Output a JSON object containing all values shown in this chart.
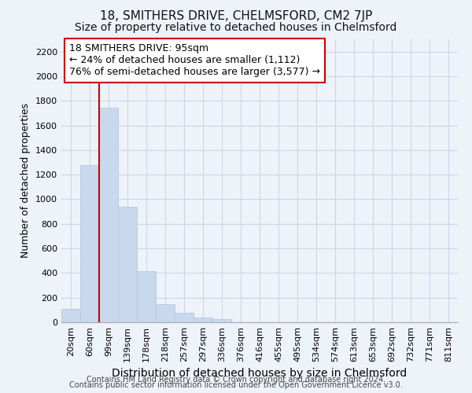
{
  "title": "18, SMITHERS DRIVE, CHELMSFORD, CM2 7JP",
  "subtitle": "Size of property relative to detached houses in Chelmsford",
  "xlabel": "Distribution of detached houses by size in Chelmsford",
  "ylabel": "Number of detached properties",
  "footer_line1": "Contains HM Land Registry data © Crown copyright and database right 2024.",
  "footer_line2": "Contains public sector information licensed under the Open Government Licence v3.0.",
  "bar_labels": [
    "20sqm",
    "60sqm",
    "99sqm",
    "139sqm",
    "178sqm",
    "218sqm",
    "257sqm",
    "297sqm",
    "336sqm",
    "376sqm",
    "416sqm",
    "455sqm",
    "495sqm",
    "534sqm",
    "574sqm",
    "613sqm",
    "653sqm",
    "692sqm",
    "732sqm",
    "771sqm",
    "811sqm"
  ],
  "bar_values": [
    110,
    1275,
    1745,
    940,
    415,
    150,
    75,
    38,
    25,
    0,
    0,
    0,
    0,
    0,
    0,
    0,
    0,
    0,
    0,
    0,
    0
  ],
  "bar_color": "#c8d8ed",
  "bar_edge_color": "#b0c4de",
  "background_color": "#eef2f9",
  "grid_color": "#ccd6e8",
  "vline_color": "#cc0000",
  "vline_x": 1.5,
  "annotation_line1": "18 SMITHERS DRIVE: 95sqm",
  "annotation_line2": "← 24% of detached houses are smaller (1,112)",
  "annotation_line3": "76% of semi-detached houses are larger (3,577) →",
  "annotation_box_color": "#ffffff",
  "annotation_box_edge": "#cc0000",
  "ylim": [
    0,
    2300
  ],
  "yticks": [
    0,
    200,
    400,
    600,
    800,
    1000,
    1200,
    1400,
    1600,
    1800,
    2000,
    2200
  ],
  "title_fontsize": 11,
  "subtitle_fontsize": 10,
  "xlabel_fontsize": 10,
  "ylabel_fontsize": 9,
  "tick_fontsize": 8,
  "annotation_fontsize": 9,
  "footer_fontsize": 7
}
